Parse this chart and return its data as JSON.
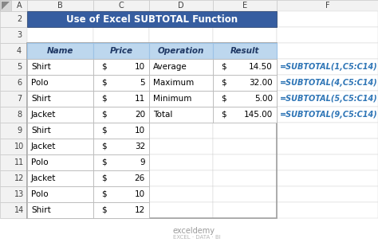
{
  "title": "Use of Excel SUBTOTAL Function",
  "title_bg": "#3B5998",
  "title_color": "#FFFFFF",
  "header_bg": "#BDD7EE",
  "header_color": "#1F3864",
  "cell_bg": "#FFFFFF",
  "row_header_bg": "#E8E8E8",
  "col_header_bg": "#E8E8E8",
  "outer_bg": "#FFFFFF",
  "formula_color": "#2E75B6",
  "name_col": [
    "Shirt",
    "Polo",
    "Shirt",
    "Jacket",
    "Shirt",
    "Jacket",
    "Polo",
    "Jacket",
    "Polo",
    "Shirt"
  ],
  "price_col": [
    10,
    5,
    11,
    20,
    10,
    32,
    9,
    26,
    10,
    12
  ],
  "op_col": [
    "Average",
    "Maximum",
    "Minimum",
    "Total"
  ],
  "result_col": [
    "14.50",
    "32.00",
    "5.00",
    "145.00"
  ],
  "formulas": [
    "=SUBTOTAL(1,C5:C14)",
    "=SUBTOTAL(4,C5:C14)",
    "=SUBTOTAL(5,C5:C14)",
    "=SUBTOTAL(9,C5:C14)"
  ]
}
